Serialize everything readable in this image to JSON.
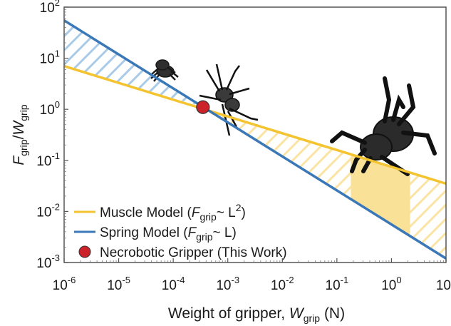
{
  "chart_data": {
    "type": "line",
    "x_scale": "log",
    "y_scale": "log",
    "xlim": [
      1e-06,
      10
    ],
    "ylim": [
      0.001,
      100
    ],
    "xlabel": {
      "main": "Weight of gripper, ",
      "var": "W",
      "sub": "grip",
      "unit": " (N)"
    },
    "ylabel": {
      "num_var": "F",
      "num_sub": "grip",
      "slash": "/",
      "den_var": "W",
      "den_sub": "grip"
    },
    "x_ticks": [
      {
        "value": 1e-06,
        "base": "10",
        "exp": "-6"
      },
      {
        "value": 1e-05,
        "base": "10",
        "exp": "-5"
      },
      {
        "value": 0.0001,
        "base": "10",
        "exp": "-4"
      },
      {
        "value": 0.001,
        "base": "10",
        "exp": "-3"
      },
      {
        "value": 0.01,
        "base": "10",
        "exp": "-2"
      },
      {
        "value": 0.1,
        "base": "10",
        "exp": "-1"
      },
      {
        "value": 1,
        "base": "10",
        "exp": "0"
      },
      {
        "value": 10,
        "base": "10",
        "exp": "1"
      }
    ],
    "y_ticks": [
      {
        "value": 0.001,
        "base": "10",
        "exp": "-3"
      },
      {
        "value": 0.01,
        "base": "10",
        "exp": "-2"
      },
      {
        "value": 0.1,
        "base": "10",
        "exp": "-1"
      },
      {
        "value": 1,
        "base": "10",
        "exp": "0"
      },
      {
        "value": 10,
        "base": "10",
        "exp": "1"
      },
      {
        "value": 100,
        "base": "10",
        "exp": "2"
      }
    ],
    "series": [
      {
        "name": "Muscle Model",
        "color": "#F4C430",
        "x": [
          1e-06,
          10
        ],
        "y": [
          7.0,
          0.035
        ]
      },
      {
        "name": "Spring Model",
        "color": "#3A78B7",
        "x": [
          1e-06,
          10
        ],
        "y": [
          55.0,
          0.0012
        ]
      }
    ],
    "point": {
      "name": "Necrobotic Gripper (This Work)",
      "color": "#CC2229",
      "x": 0.00035,
      "y": 1.1
    },
    "highlight_band": {
      "x": [
        0.18,
        2.2
      ],
      "color": "#FAE198"
    },
    "legend": {
      "position": "bottom-left",
      "items": [
        {
          "type": "line",
          "color": "#F4C430",
          "text": "Muscle Model (",
          "var": "F",
          "sub": "grip",
          "tail": "~ L",
          "sup": "2",
          "close": ")"
        },
        {
          "type": "line",
          "color": "#3A78B7",
          "text": "Spring Model (",
          "var": "F",
          "sub": "grip",
          "tail": "~ L",
          "sup": "",
          "close": ")"
        },
        {
          "type": "dot",
          "color": "#CC2229",
          "text": "Necrobotic Gripper (This Work)"
        }
      ]
    }
  },
  "icons": [
    "jumping-spider-icon",
    "wolf-spider-icon",
    "tarantula-icon"
  ]
}
